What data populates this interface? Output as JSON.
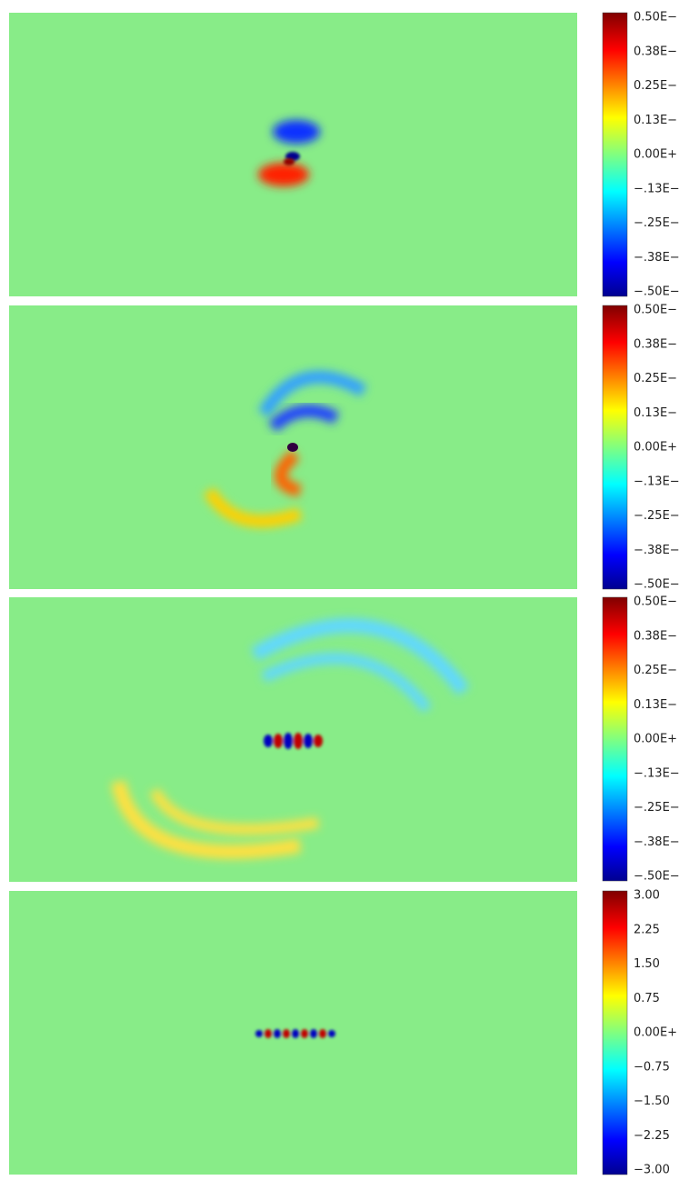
{
  "panels": [
    {
      "colorbar_labels": [
        "0.50E−",
        "0.38E−",
        "0.25E−",
        "0.13E−",
        "0.00E+",
        "−.13E−",
        "−.25E−",
        "−.38E−",
        "−.50E−"
      ]
    },
    {
      "colorbar_labels": [
        "0.50E−",
        "0.38E−",
        "0.25E−",
        "0.13E−",
        "0.00E+",
        "−.13E−",
        "−.25E−",
        "−.38E−",
        "−.50E−"
      ]
    },
    {
      "colorbar_labels": [
        "0.50E−",
        "0.38E−",
        "0.25E−",
        "0.13E−",
        "0.00E+",
        "−.13E−",
        "−.25E−",
        "−.38E−",
        "−.50E−"
      ]
    },
    {
      "colorbar_labels": [
        "3.00",
        "2.25",
        "1.50",
        "0.75",
        "0.00E+",
        "−0.75",
        "−1.50",
        "−2.25",
        "−3.00"
      ]
    }
  ]
}
